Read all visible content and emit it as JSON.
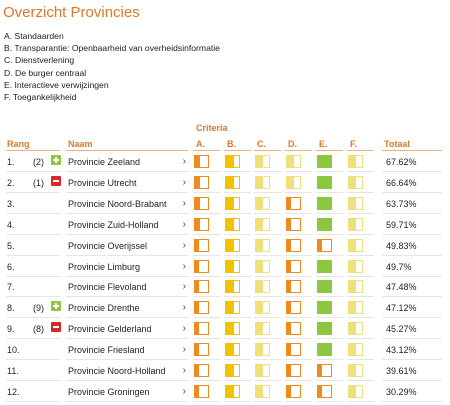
{
  "page": {
    "title": "Overzicht Provincies"
  },
  "legend": [
    "A. Standaarden",
    "B. Transparantie: Openbaarheid van overheidsinformatie",
    "C. Dienstverlening",
    "D. De burger centraal",
    "E. Interactieve verwijzingen",
    "F. Toegankelijkheid"
  ],
  "table": {
    "headers": {
      "rank": "Rang",
      "name": "Naam",
      "criteria": "Criteria",
      "total": "Totaal"
    },
    "criteria": [
      "A.",
      "B.",
      "C.",
      "D.",
      "E.",
      "F."
    ],
    "colors": {
      "green": "#8dc63f",
      "yellow": "#f2c200",
      "orange": "#f08a1c",
      "light_yellow": "#efe07a"
    },
    "rows": [
      {
        "rank": "1.",
        "change": "(2)",
        "trend": "up",
        "name": "Provincie Zeeland",
        "total": "67.62%",
        "scores": [
          0.4,
          0.6,
          0.5,
          0.5,
          1,
          0.5
        ]
      },
      {
        "rank": "2.",
        "change": "(1)",
        "trend": "down",
        "name": "Provincie Utrecht",
        "total": "66.64%",
        "scores": [
          0.4,
          0.6,
          0.5,
          0.5,
          1,
          0.5
        ]
      },
      {
        "rank": "3.",
        "change": "",
        "trend": "",
        "name": "Provincie Noord-Brabant",
        "total": "63.73%",
        "scores": [
          0.4,
          0.6,
          0.5,
          0.3,
          1,
          0.5
        ]
      },
      {
        "rank": "4.",
        "change": "",
        "trend": "",
        "name": "Provincie Zuid-Holland",
        "total": "59.71%",
        "scores": [
          0.4,
          0.6,
          0.5,
          0.3,
          1,
          0.5
        ]
      },
      {
        "rank": "5.",
        "change": "",
        "trend": "",
        "name": "Provincie Overijssel",
        "total": "49.83%",
        "scores": [
          0.3,
          0.6,
          0.5,
          0.3,
          0.3,
          0.5
        ]
      },
      {
        "rank": "6.",
        "change": "",
        "trend": "",
        "name": "Provincie Limburg",
        "total": "49.7%",
        "scores": [
          0.3,
          0.6,
          0.5,
          0.3,
          1,
          0.5
        ]
      },
      {
        "rank": "7.",
        "change": "",
        "trend": "",
        "name": "Provincie Flevoland",
        "total": "47.48%",
        "scores": [
          0.3,
          0.6,
          0.5,
          0.3,
          1,
          0.5
        ]
      },
      {
        "rank": "8.",
        "change": "(9)",
        "trend": "up",
        "name": "Provincie Drenthe",
        "total": "47.12%",
        "scores": [
          0.3,
          0.6,
          0.5,
          0.3,
          1,
          0.5
        ]
      },
      {
        "rank": "9.",
        "change": "(8)",
        "trend": "down",
        "name": "Provincie Gelderland",
        "total": "45.27%",
        "scores": [
          0.3,
          0.6,
          0.5,
          0.3,
          1,
          0.5
        ]
      },
      {
        "rank": "10.",
        "change": "",
        "trend": "",
        "name": "Provincie Friesland",
        "total": "43.12%",
        "scores": [
          0.3,
          0.6,
          0.5,
          0.3,
          1,
          0.5
        ]
      },
      {
        "rank": "11.",
        "change": "",
        "trend": "",
        "name": "Provincie Noord-Holland",
        "total": "39.61%",
        "scores": [
          0.3,
          0.6,
          0.5,
          0.3,
          0.3,
          0.5
        ]
      },
      {
        "rank": "12.",
        "change": "",
        "trend": "",
        "name": "Provincie Groningen",
        "total": "30.29%",
        "scores": [
          0.3,
          0.6,
          0.5,
          0.3,
          0.3,
          0.5
        ]
      }
    ]
  }
}
